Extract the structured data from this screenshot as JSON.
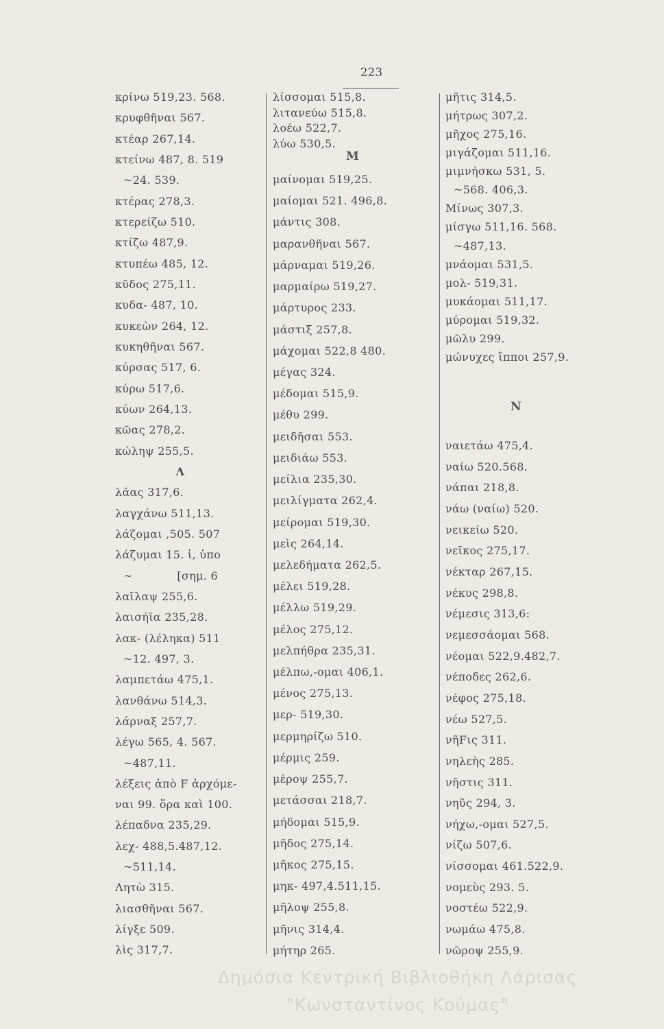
{
  "page_number": "223",
  "left_column": {
    "lines": [
      "κρίνω 519,23. 568.",
      "κρυφθῆναι 567.",
      "κτέαρ 267,14.",
      "κτείνω 487, 8. 519",
      "~24. 539.",
      "κτέρας 278,3.",
      "κτερείζω 510.",
      "κτίζω 487,9.",
      "κτυπέω 485, 12.",
      "κῦδος 275,11.",
      "κυδα- 487, 10.",
      "κυκεὼν 264, 12.",
      "κυκηθῆναι 567.",
      "κύρσας 517, 6.",
      "κύρω 517,6.",
      "κύων 264,13.",
      "κῶας 278,2.",
      "κώληψ 255,5.",
      "#Λ",
      "λᾶας 317,6.",
      "λαγχάνω 511,13.",
      "λάζομαι ,505. 507",
      "λάζυμαι 15. ἰ, ὑπο",
      "~            [σημ. 6",
      "λαῖλαψ 255,6.",
      "λαισήϊα 235,28.",
      "λακ- (λέληκα) 511",
      "~12. 497, 3.",
      "λαμπετάω 475,1.",
      "λανθάνω 514,3.",
      "λάρναξ 257,7.",
      "λέγω 565, 4. 567.",
      "~487,11.",
      "λέξεις ἀπὸ F ἀρχόμε-",
      "ναι 99. ὅρα καὶ 100.",
      "λέπαδνα 235,29.",
      "λεχ- 488,5.487,12.",
      "~511,14.",
      "Λητὼ 315.",
      "λιασθῆναι 567.",
      "λίγξε 509.",
      "λὶς 317,7."
    ]
  },
  "middle_column": {
    "top_lines": [
      "λίσσομαι 515,8.",
      "λιτανεύω 515,8.",
      "λοέω 522,7.",
      "λύω 530,5."
    ],
    "heading": "M",
    "lines": [
      "μαίνομαι 519,25.",
      "μαίομαι 521. 496,8.",
      "μάντις 308.",
      "μαρανθῆναι 567.",
      "μάρναμαι 519,26.",
      "μαρμαίρω 519,27.",
      "μάρτυρος 233.",
      "μάστιξ 257,8.",
      "μάχομαι 522,8 480.",
      "μέγας 324.",
      "μέδομαι 515,9.",
      "μέθυ 299.",
      "μειδῆσαι 553.",
      "μειδιάω 553.",
      "μείλια 235,30.",
      "μειλίγματα 262,4.",
      "μείρομαι 519,30.",
      "μεὶς 264,14.",
      "μελεδήματα 262,5.",
      "μέλει 519,28.",
      "μέλλω 519,29.",
      "μέλος 275,12.",
      "μελπήθρα 235,31.",
      "μέλπω,-ομαι 406,1.",
      "μένος 275,13.",
      "μερ- 519,30.",
      "μερμηρίζω 510.",
      "μέρμις 259.",
      "μέροψ 255,7.",
      "μετάσσαι 218,7.",
      "μήδομαι 515,9.",
      "μῆδος 275,14.",
      "μῆκος 275,15.",
      "μηκ- 497,4.511,15.",
      "μῆλοψ 255,8.",
      "μῆνις 314,4.",
      "μήτηρ 265."
    ]
  },
  "right_column": {
    "top_lines": [
      "μῆτις 314,5.",
      "μήτρως 307,2.",
      "μῆχος 275,16.",
      "μιγάζομαι 511,16.",
      "μιμνήσκω 531, 5.",
      "~568. 406,3.",
      "Μίνως 307,3.",
      "μίσγω 511,16. 568.",
      "~487,13.",
      "μνάομαι 531,5.",
      "μολ- 519,31.",
      "μυκάομαι 511,17.",
      "μύρομαι 519,32.",
      "μῶλυ 299.",
      "μώνυχες ἵπποι 257,9."
    ],
    "heading": "N",
    "lines": [
      "ναιετάω 475,4.",
      "ναίω 520.568.",
      "νάπαι 218,8.",
      "νάω (ναίω) 520.",
      "νεικείω 520.",
      "νεῖκος 275,17.",
      "νέκταρ 267,15.",
      "νέκυς 298,8.",
      "νέμεσις 313,6:",
      "νεμεσσάομαι 568.",
      "νέομαι 522,9.482,7.",
      "νέποδες 262,6.",
      "νέφος 275,18.",
      "νέω 527,5.",
      "νῆFις 311.",
      "νηλεὴς 285.",
      "νῆστις 311.",
      "νηῦς 294, 3.",
      "νήχω,-ομαι 527,5.",
      "νίζω 507,6.",
      "νίσσομαι 461.522,9.",
      "νομεὺς 293. 5.",
      "νοστέω 522,9.",
      "νωμάω 475,8.",
      "νῶροψ 255,9."
    ]
  },
  "watermark": {
    "line1": "Δημόσια Κεντρική Βιβλιοθήκη Λάρισας",
    "line2": "\"Κωνσταντίνος Κούμας\""
  }
}
